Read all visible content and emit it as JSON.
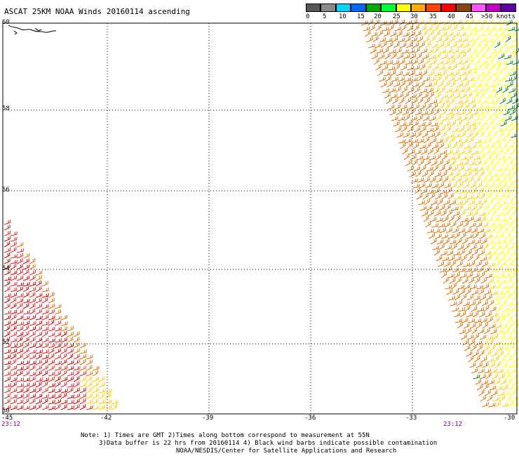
{
  "title": "ASCAT 25KM NOAA Winds 20160114 ascending",
  "legend": {
    "colors": [
      "#555555",
      "#8a8a8a",
      "#00d6ff",
      "#0066ff",
      "#00aa00",
      "#00ff33",
      "#ffff00",
      "#ffaa00",
      "#ff4400",
      "#ff0000",
      "#8b4513",
      "#ff55ff",
      "#c000c0",
      "#6000a0"
    ],
    "labels": [
      "0",
      "5",
      "10",
      "15",
      "20",
      "25",
      "30",
      "35",
      "40",
      "45",
      ">50 knots"
    ]
  },
  "axes": {
    "lat_ticks": [
      "60",
      "58",
      "56",
      "54",
      "52",
      "50"
    ],
    "lon_ticks": [
      "-45",
      "-42",
      "-39",
      "-36",
      "-33",
      "-30"
    ]
  },
  "time_labels": [
    "23:12",
    "23:12"
  ],
  "notes": [
    "Note: 1) Times are GMT 2)Times along bottom correspond to measurement at 55N",
    "3)Data buffer is 22 hrs from 20160114 4) Black wind barbs indicate possible contamination",
    "NOAA/NESDIS/Center for Satellite Applications and Research"
  ],
  "palette": {
    "red": "#cc0000",
    "orange": "#e07000",
    "gold": "#ffcc00",
    "yellow": "#ffff00",
    "green": "#008800",
    "coast": "#000000"
  }
}
